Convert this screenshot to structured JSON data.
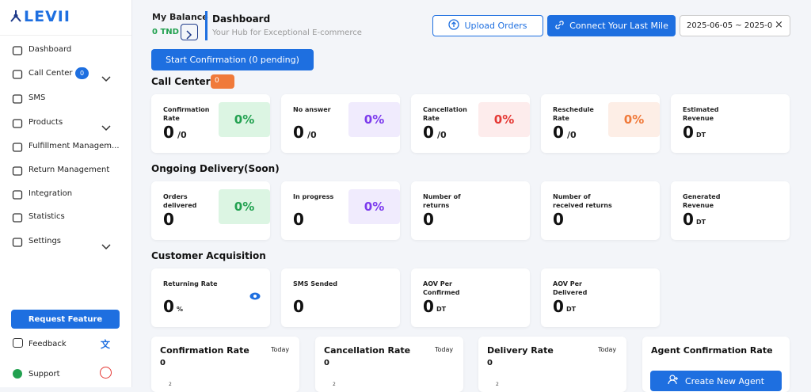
{
  "sidebar": {
    "logo": "LEVII",
    "nav": [
      {
        "label": "Dashboard"
      },
      {
        "label": "Call Center",
        "badge": "0",
        "submenu": true
      },
      {
        "label": "SMS"
      },
      {
        "label": "Products",
        "submenu": true
      },
      {
        "label": "Fulfillment Managem..."
      },
      {
        "label": "Return Management"
      },
      {
        "label": "Integration"
      },
      {
        "label": "Statistics"
      },
      {
        "label": "Settings",
        "submenu": true
      }
    ],
    "request_feature": "Request Feature",
    "feedback": "Feedback",
    "support": "Support"
  },
  "header": {
    "balance_label": "My Balance",
    "balance": "0 TND",
    "title": "Dashboard",
    "subtitle": "Your Hub for Exceptional E-commerce",
    "upload": "Upload Orders",
    "connect": "Connect Your Last Mile",
    "date_range": "2025-06-05 ~ 2025-0"
  },
  "start_confirmation": "Start Confirmation (0 pending)",
  "sections": [
    {
      "title": "Call Center",
      "badge": "0",
      "cards": [
        {
          "label": "Confirmation Rate",
          "value": "0",
          "unit": "/0",
          "percent": "0%",
          "color": "#22a150",
          "bg": "#dcf5e3"
        },
        {
          "label": "No answer",
          "value": "0",
          "unit": "/0",
          "percent": "0%",
          "color": "#7c3aed",
          "bg": "#f0ebfd"
        },
        {
          "label": "Cancellation Rate",
          "value": "0",
          "unit": "/0",
          "percent": "0%",
          "color": "#e53935",
          "bg": "#fdecec"
        },
        {
          "label": "Reschedule Rate",
          "value": "0",
          "unit": "/0",
          "percent": "0%",
          "color": "#f07a3a",
          "bg": "#fdeee6"
        },
        {
          "label": "Estimated Revenue",
          "value": "0",
          "unit": "DT"
        }
      ]
    },
    {
      "title": "Ongoing Delivery(Soon)",
      "cards": [
        {
          "label": "Orders delivered",
          "value": "0",
          "percent": "0%",
          "color": "#22a150",
          "bg": "#dcf5e3"
        },
        {
          "label": "In progress",
          "value": "0",
          "percent": "0%",
          "color": "#7c3aed",
          "bg": "#f0ebfd"
        },
        {
          "label": "Number of returns",
          "value": "0"
        },
        {
          "label": "Number of received returns",
          "value": "0"
        },
        {
          "label": "Generated Revenue",
          "value": "0",
          "unit": "DT"
        }
      ]
    },
    {
      "title": "Customer Acquisition",
      "cards": [
        {
          "label": "Returning Rate",
          "value": "0",
          "unit": "%",
          "eye": true
        },
        {
          "label": "SMS Sended",
          "value": "0"
        },
        {
          "label": "AOV Per Confirmed",
          "value": "0",
          "unit": "DT"
        },
        {
          "label": "AOV Per Delivered",
          "value": "0",
          "unit": "DT"
        }
      ]
    }
  ],
  "bottom_cards": [
    {
      "title": "Confirmation Rate",
      "period": "Today",
      "value": "0",
      "axis_tick": "2"
    },
    {
      "title": "Cancellation Rate",
      "period": "Today",
      "value": "0",
      "axis_tick": "2"
    },
    {
      "title": "Delivery Rate",
      "period": "Today",
      "value": "0",
      "axis_tick": "2"
    },
    {
      "title": "Agent Confirmation Rate",
      "button": "Create New Agent"
    }
  ]
}
